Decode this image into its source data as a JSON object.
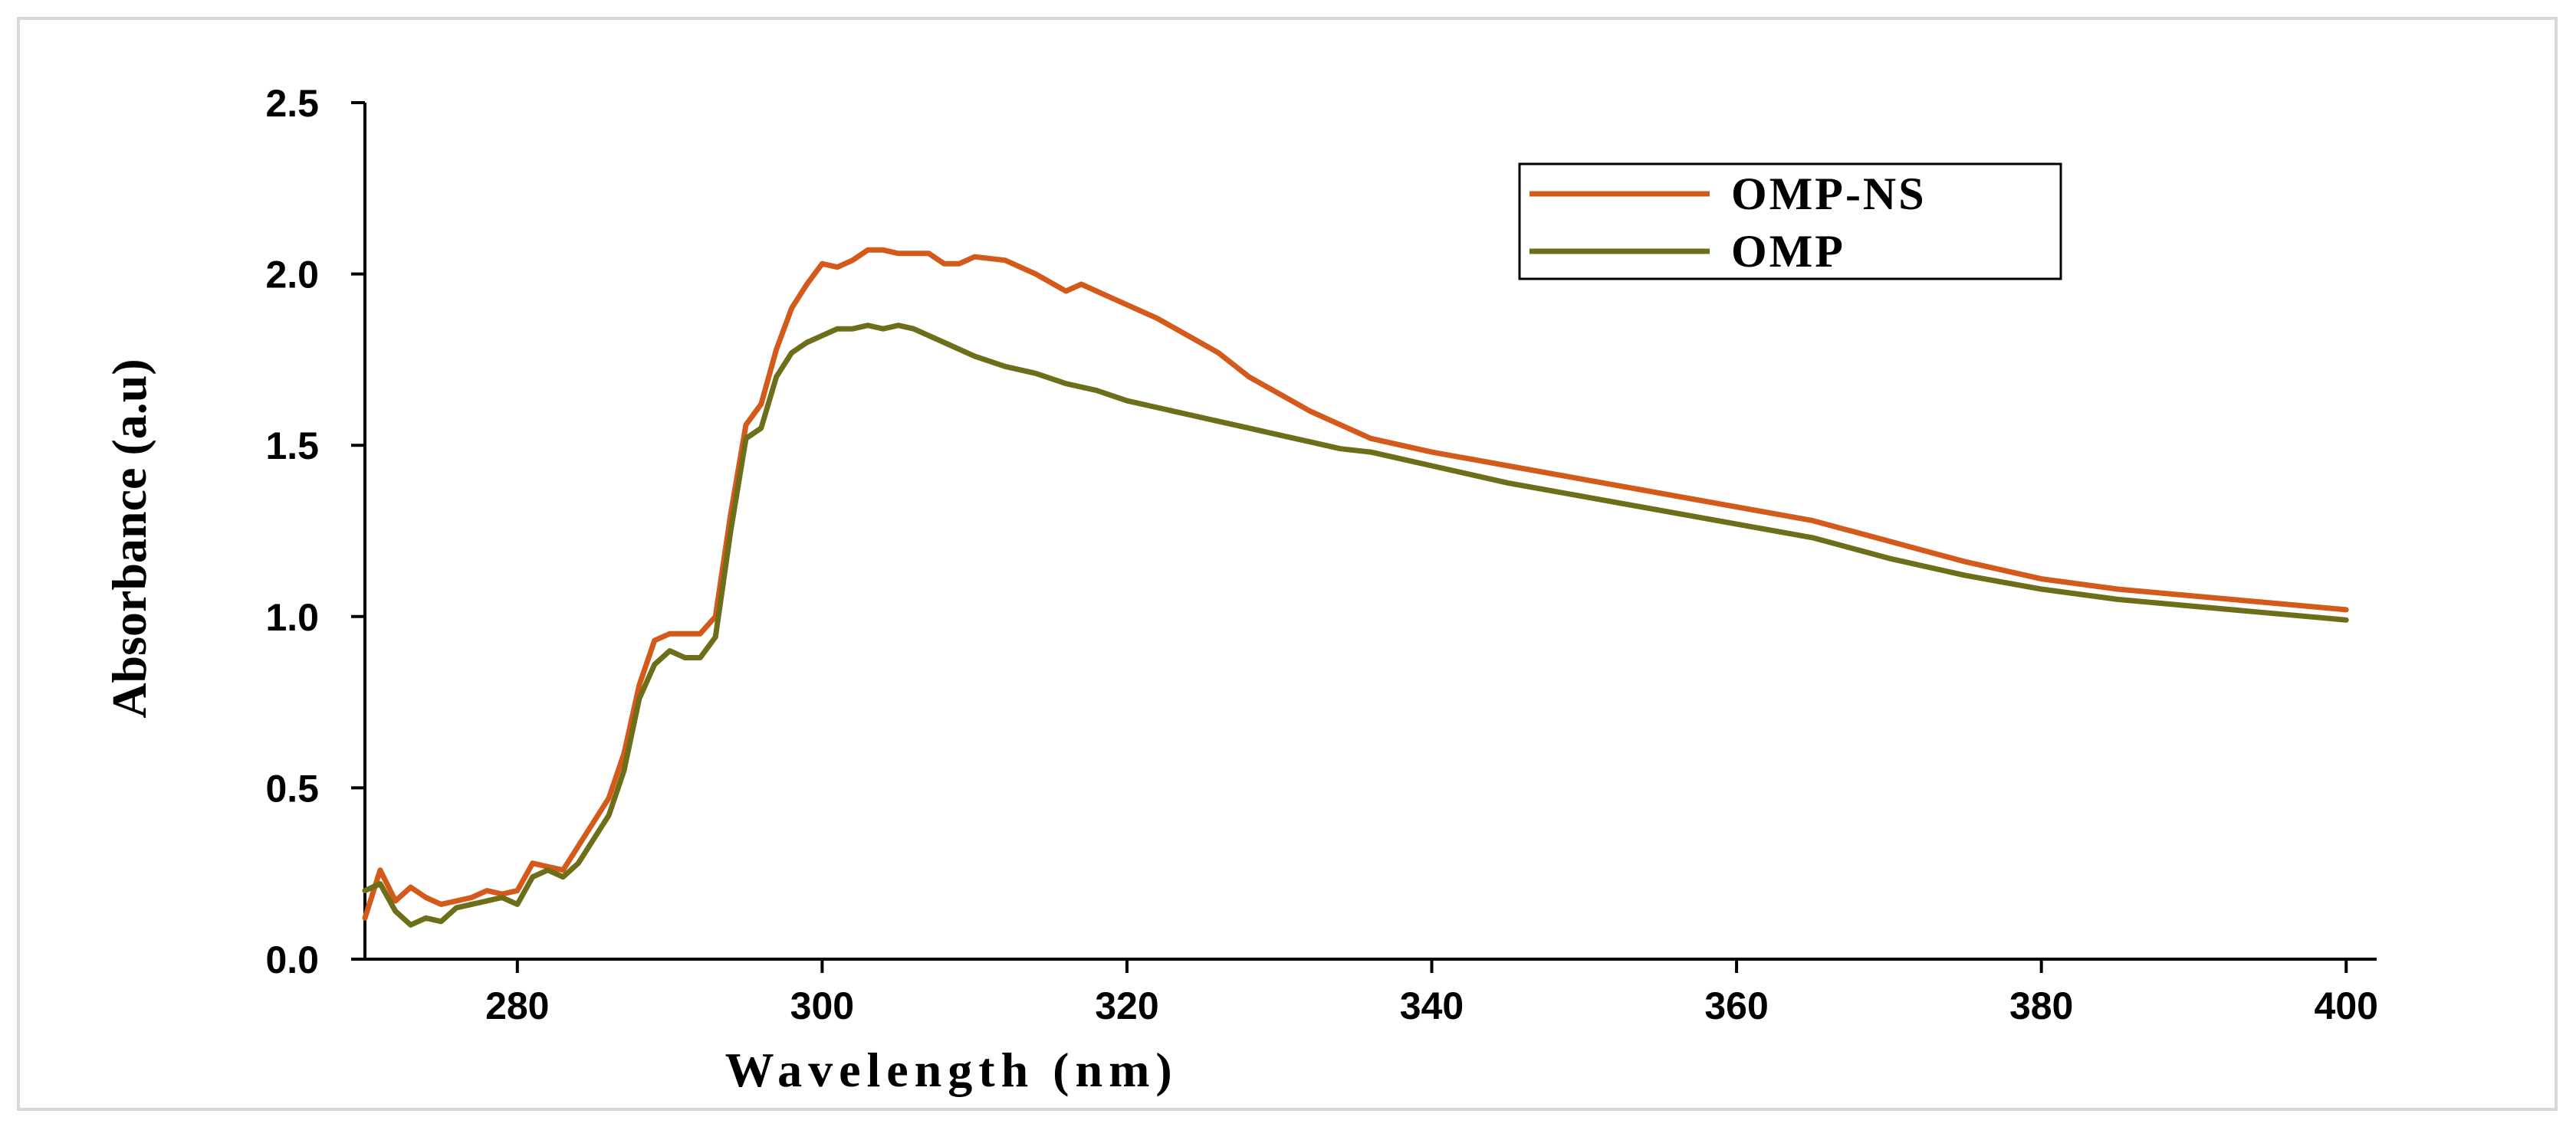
{
  "chart_data": {
    "type": "line",
    "title": "",
    "xlabel": "Wavelength (nm)",
    "ylabel": "Absorbance (a.u)",
    "xlim": [
      270,
      402
    ],
    "ylim": [
      0.0,
      2.5
    ],
    "xticks": [
      280,
      300,
      320,
      340,
      360,
      380,
      400
    ],
    "xtick_labels": [
      "280",
      "300",
      "320",
      "340",
      "360",
      "380",
      "400"
    ],
    "yticks": [
      0.0,
      0.5,
      1.0,
      1.5,
      2.0,
      2.5
    ],
    "ytick_labels": [
      "0.0",
      "0.5",
      "1.0",
      "1.5",
      "2.0",
      "2.5"
    ],
    "grid": false,
    "legend_position": "top-right",
    "series": [
      {
        "name": "OMP-NS",
        "color": "#D35A1B",
        "x": [
          270,
          271,
          272,
          273,
          274,
          275,
          276,
          277,
          278,
          279,
          280,
          281,
          282,
          283,
          284,
          285,
          286,
          287,
          288,
          289,
          290,
          291,
          292,
          293,
          294,
          295,
          296,
          297,
          298,
          299,
          300,
          301,
          302,
          303,
          304,
          305,
          306,
          307,
          308,
          309,
          310,
          312,
          314,
          316,
          317,
          318,
          320,
          322,
          324,
          326,
          328,
          330,
          332,
          334,
          336,
          338,
          340,
          345,
          350,
          355,
          360,
          365,
          370,
          375,
          380,
          385,
          390,
          395,
          400
        ],
        "values": [
          0.12,
          0.26,
          0.17,
          0.21,
          0.18,
          0.16,
          0.17,
          0.18,
          0.2,
          0.19,
          0.2,
          0.28,
          0.27,
          0.26,
          0.33,
          0.4,
          0.47,
          0.6,
          0.8,
          0.93,
          0.95,
          0.95,
          0.95,
          1.0,
          1.3,
          1.56,
          1.62,
          1.78,
          1.9,
          1.97,
          2.03,
          2.02,
          2.04,
          2.07,
          2.07,
          2.06,
          2.06,
          2.06,
          2.03,
          2.03,
          2.05,
          2.04,
          2.0,
          1.95,
          1.97,
          1.95,
          1.91,
          1.87,
          1.82,
          1.77,
          1.7,
          1.65,
          1.6,
          1.56,
          1.52,
          1.5,
          1.48,
          1.44,
          1.4,
          1.36,
          1.32,
          1.28,
          1.22,
          1.16,
          1.11,
          1.08,
          1.06,
          1.04,
          1.02
        ]
      },
      {
        "name": "OMP",
        "color": "#6E6E1A",
        "x": [
          270,
          271,
          272,
          273,
          274,
          275,
          276,
          277,
          278,
          279,
          280,
          281,
          282,
          283,
          284,
          285,
          286,
          287,
          288,
          289,
          290,
          291,
          292,
          293,
          294,
          295,
          296,
          297,
          298,
          299,
          300,
          301,
          302,
          303,
          304,
          305,
          306,
          308,
          310,
          312,
          314,
          316,
          318,
          320,
          322,
          324,
          326,
          328,
          330,
          332,
          334,
          336,
          338,
          340,
          345,
          350,
          355,
          360,
          365,
          370,
          375,
          380,
          385,
          390,
          395,
          400
        ],
        "values": [
          0.2,
          0.22,
          0.14,
          0.1,
          0.12,
          0.11,
          0.15,
          0.16,
          0.17,
          0.18,
          0.16,
          0.24,
          0.26,
          0.24,
          0.28,
          0.35,
          0.42,
          0.55,
          0.76,
          0.86,
          0.9,
          0.88,
          0.88,
          0.94,
          1.25,
          1.52,
          1.55,
          1.7,
          1.77,
          1.8,
          1.82,
          1.84,
          1.84,
          1.85,
          1.84,
          1.85,
          1.84,
          1.8,
          1.76,
          1.73,
          1.71,
          1.68,
          1.66,
          1.63,
          1.61,
          1.59,
          1.57,
          1.55,
          1.53,
          1.51,
          1.49,
          1.48,
          1.46,
          1.44,
          1.39,
          1.35,
          1.31,
          1.27,
          1.23,
          1.17,
          1.12,
          1.08,
          1.05,
          1.03,
          1.01,
          0.99
        ]
      }
    ]
  }
}
